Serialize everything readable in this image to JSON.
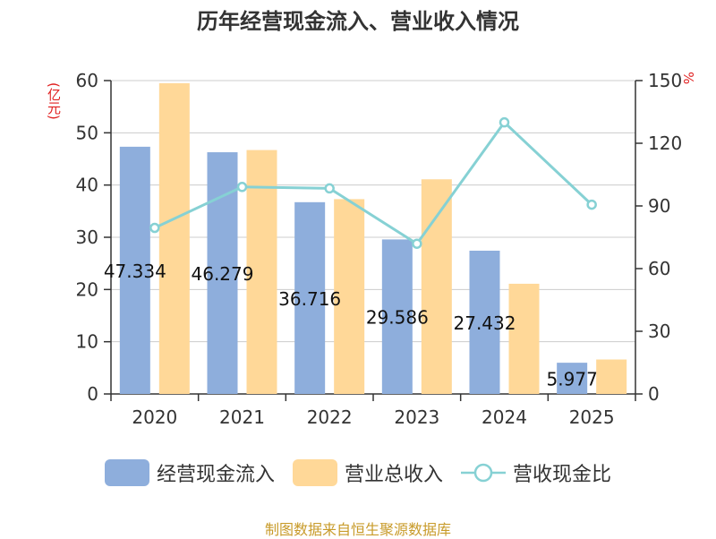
{
  "chart_data": {
    "type": "bar",
    "title": "历年经营现金流入、营业收入情况",
    "left_axis_unit": "(亿元)",
    "right_axis_unit": "%",
    "categories": [
      "2020",
      "2021",
      "2022",
      "2023",
      "2024",
      "2025"
    ],
    "ylim_left": [
      0,
      60
    ],
    "yticks_left": [
      0,
      10,
      20,
      30,
      40,
      50,
      60
    ],
    "ylim_right": [
      0,
      150
    ],
    "yticks_right": [
      0,
      30,
      60,
      90,
      120,
      150
    ],
    "grid": true,
    "legend_position": "bottom",
    "series": [
      {
        "name": "经营现金流入",
        "type": "bar",
        "axis": "left",
        "color": "#8eaedc",
        "values": [
          47.334,
          46.279,
          36.716,
          29.586,
          27.432,
          5.977
        ],
        "data_labels": [
          "47.334",
          "46.279",
          "36.716",
          "29.586",
          "27.432",
          "5.977"
        ]
      },
      {
        "name": "营业总收入",
        "type": "bar",
        "axis": "left",
        "color": "#ffd898",
        "values": [
          59.5,
          46.7,
          37.3,
          41.1,
          21.1,
          6.6
        ]
      },
      {
        "name": "营收现金比",
        "type": "line",
        "axis": "right",
        "color": "#86d1d4",
        "values": [
          79.5,
          99.1,
          98.4,
          71.9,
          130,
          90.6
        ]
      }
    ]
  },
  "source": "制图数据来自恒生聚源数据库"
}
